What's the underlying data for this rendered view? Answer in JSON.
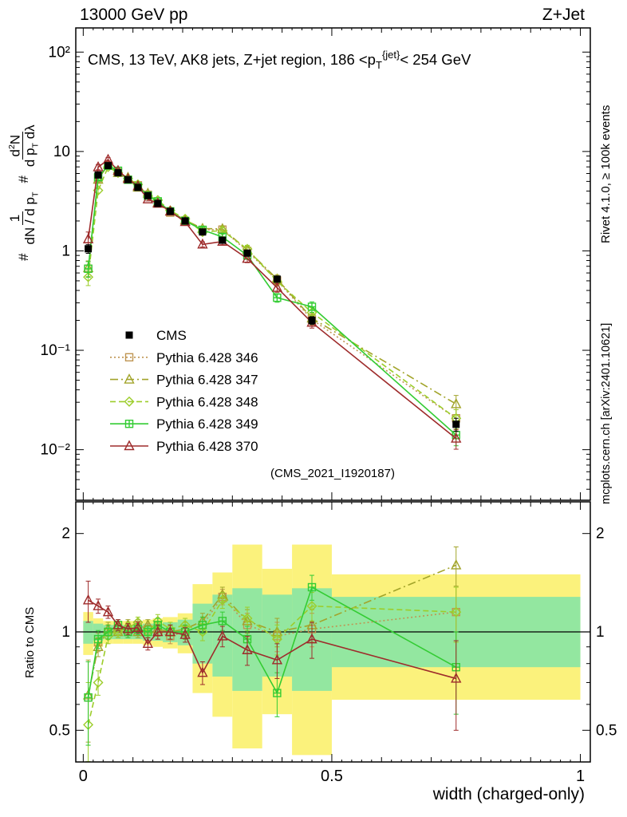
{
  "header": {
    "left": "13000 GeV pp",
    "right": "Z+Jet"
  },
  "panel_title": {
    "pre": "CMS, 13 TeV, AK8 jets, Z+jet region, 186 <p",
    "sub": "T",
    "sup": "{jet}",
    "post": "< 254 GeV"
  },
  "watermark": "(CMS_2021_I1920187)",
  "side_notes": {
    "top": "Rivet 4.1.0, ≥ 100k events",
    "bottom": "mcplots.cern.ch [arXiv:2401.10621]"
  },
  "axes": {
    "x_title": "width (charged-only)",
    "ratio_ylabel": "Ratio to CMS",
    "main_yticks": {
      "values": [
        100,
        10,
        1,
        0.1,
        0.01
      ],
      "labels": [
        "10²",
        "10",
        "1",
        "10⁻¹",
        "10⁻²"
      ]
    },
    "ratio_yticks": {
      "values": [
        2,
        1,
        0.5
      ],
      "labels": [
        "2",
        "1",
        "0.5"
      ]
    },
    "xticks": {
      "values": [
        0,
        0.5,
        1
      ],
      "labels": [
        "0",
        "0.5",
        "1"
      ]
    }
  },
  "ylabel_main": {
    "hash1": "#",
    "f1num": "1",
    "f1den_a": "dN / d p",
    "f1den_sub": "T",
    "hash2": "#",
    "f2num_a": "d",
    "f2num_sup": "2",
    "f2num_b": "N",
    "f2den_a": "d p",
    "f2den_sub": "T",
    "f2den_b": " dλ"
  },
  "chart_data": {
    "type": "line",
    "title": "CMS, 13 TeV, AK8 jets, Z+jet region, 186 < pT{jet} < 254 GeV",
    "xlabel": "width (charged-only)",
    "xlim": [
      -0.015,
      1.02
    ],
    "main_ylog_range": [
      0.0031,
      175
    ],
    "ratio_ylog_range": [
      0.4,
      2.5
    ],
    "x_edges": [
      0,
      0.02,
      0.04,
      0.06,
      0.08,
      0.1,
      0.12,
      0.14,
      0.16,
      0.19,
      0.22,
      0.26,
      0.3,
      0.36,
      0.42,
      0.5,
      1.0
    ],
    "x_centers": [
      0.01,
      0.03,
      0.05,
      0.07,
      0.09,
      0.11,
      0.13,
      0.15,
      0.175,
      0.205,
      0.24,
      0.28,
      0.33,
      0.39,
      0.46,
      0.75
    ],
    "err_frac": [
      0.18,
      0.06,
      0.05,
      0.04,
      0.04,
      0.04,
      0.04,
      0.05,
      0.05,
      0.05,
      0.06,
      0.07,
      0.09,
      0.1,
      0.12,
      0.22
    ],
    "cms": {
      "label": "CMS",
      "color": "#000000",
      "marker": "square-filled",
      "y": [
        1.05,
        5.8,
        7.2,
        6.1,
        5.2,
        4.35,
        3.6,
        3.0,
        2.5,
        2.0,
        1.55,
        1.28,
        0.95,
        0.52,
        0.2,
        0.018
      ],
      "err_frac": [
        0.1,
        0.05,
        0.04,
        0.03,
        0.03,
        0.03,
        0.03,
        0.03,
        0.04,
        0.04,
        0.05,
        0.05,
        0.06,
        0.07,
        0.09,
        0.15
      ]
    },
    "bands": {
      "yellow": {
        "color": "#fbf27c",
        "lo": [
          0.85,
          0.9,
          0.92,
          0.92,
          0.92,
          0.92,
          0.91,
          0.9,
          0.89,
          0.86,
          0.65,
          0.55,
          0.44,
          0.56,
          0.42,
          0.62
        ],
        "hi": [
          1.15,
          1.1,
          1.08,
          1.08,
          1.08,
          1.08,
          1.09,
          1.1,
          1.11,
          1.14,
          1.4,
          1.52,
          1.85,
          1.56,
          1.85,
          1.5
        ]
      },
      "green": {
        "color": "#93e7a0",
        "lo": [
          0.92,
          0.94,
          0.95,
          0.95,
          0.95,
          0.95,
          0.94,
          0.94,
          0.93,
          0.91,
          0.8,
          0.73,
          0.66,
          0.73,
          0.66,
          0.78
        ],
        "hi": [
          1.08,
          1.06,
          1.05,
          1.05,
          1.05,
          1.05,
          1.06,
          1.06,
          1.07,
          1.09,
          1.22,
          1.3,
          1.36,
          1.3,
          1.36,
          1.28
        ]
      }
    },
    "series": [
      {
        "id": "py346",
        "label": "Pythia 6.428 346",
        "color": "#bf9552",
        "dash": "2 3",
        "marker": "square-open",
        "ratio": [
          0.63,
          0.93,
          1.0,
          1.02,
          1.0,
          1.05,
          1.02,
          1.0,
          0.97,
          1.0,
          1.05,
          1.28,
          1.05,
          0.97,
          1.02,
          1.15
        ]
      },
      {
        "id": "py347",
        "label": "Pythia 6.428 347",
        "color": "#a2a42a",
        "dash": "10 4 2 4",
        "marker": "triangle-open",
        "ratio": [
          0.64,
          0.9,
          1.02,
          1.0,
          1.05,
          1.0,
          1.05,
          1.02,
          1.0,
          1.02,
          1.08,
          1.3,
          1.08,
          1.0,
          1.05,
          1.6
        ]
      },
      {
        "id": "py348",
        "label": "Pythia 6.428 348",
        "color": "#9ccd2a",
        "dash": "7 4",
        "marker": "diamond-open",
        "ratio": [
          0.52,
          0.7,
          0.97,
          1.0,
          1.03,
          1.07,
          1.0,
          1.08,
          1.02,
          1.05,
          1.0,
          1.25,
          1.1,
          0.95,
          1.2,
          1.15
        ]
      },
      {
        "id": "py349",
        "label": "Pythia 6.428 349",
        "color": "#33cc33",
        "dash": "",
        "marker": "square-plus",
        "ratio": [
          0.63,
          0.95,
          1.0,
          1.05,
          1.0,
          1.02,
          1.0,
          1.05,
          1.0,
          1.0,
          1.05,
          1.08,
          0.95,
          0.65,
          1.37,
          0.78
        ]
      },
      {
        "id": "py370",
        "label": "Pythia 6.428 370",
        "color": "#9e2b2b",
        "dash": "",
        "marker": "triangle-open",
        "ratio": [
          1.25,
          1.2,
          1.15,
          1.05,
          1.02,
          1.03,
          0.92,
          1.0,
          1.0,
          0.98,
          0.75,
          0.97,
          0.88,
          0.82,
          0.95,
          0.72
        ]
      }
    ],
    "legend_position": "center-left",
    "grid": false
  }
}
